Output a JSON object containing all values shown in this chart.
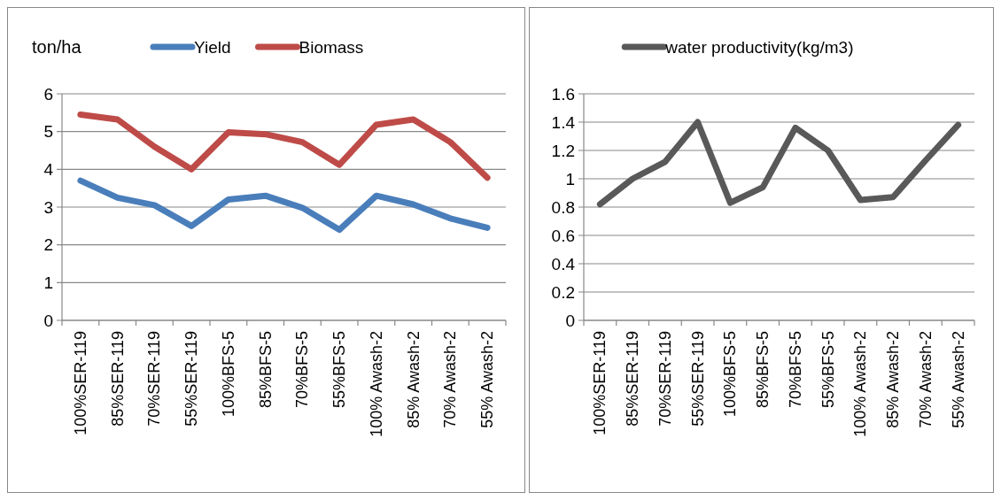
{
  "chart_data": [
    {
      "type": "line",
      "ylabel": "ton/ha",
      "categories": [
        "100%SER-119",
        "85%SER-119",
        "70%SER-119",
        "55%SER-119",
        "100%BFS-5",
        "85%BFS-5",
        "70%BFS-5",
        "55%BFS-5",
        "100% Awash-2",
        "85% Awash-2",
        "70% Awash-2",
        "55% Awash-2"
      ],
      "series": [
        {
          "name": "Yield",
          "color": "#4a7ebb",
          "values": [
            3.7,
            3.25,
            3.05,
            2.5,
            3.2,
            3.3,
            2.98,
            2.4,
            3.3,
            3.07,
            2.7,
            2.45
          ]
        },
        {
          "name": "Biomass",
          "color": "#be4b48",
          "values": [
            5.45,
            5.32,
            4.6,
            4.0,
            4.98,
            4.93,
            4.72,
            4.12,
            5.18,
            5.32,
            4.72,
            3.78
          ]
        }
      ],
      "ylim": [
        0,
        6
      ],
      "yticks": [
        0,
        1,
        2,
        3,
        4,
        5,
        6
      ],
      "grid": "y",
      "legend": "top",
      "marker": "none"
    },
    {
      "type": "line",
      "categories": [
        "100%SER-119",
        "85%SER-119",
        "70%SER-119",
        "55%SER-119",
        "100%BFS-5",
        "85%BFS-5",
        "70%BFS-5",
        "55%BFS-5",
        "100% Awash-2",
        "85% Awash-2",
        "70% Awash-2",
        "55% Awash-2"
      ],
      "series": [
        {
          "name": "water productivity(kg/m3)",
          "color": "#595959",
          "values": [
            0.82,
            1.0,
            1.12,
            1.4,
            0.83,
            0.94,
            1.36,
            1.2,
            0.85,
            0.87,
            1.13,
            1.38
          ]
        }
      ],
      "ylim": [
        0,
        1.6
      ],
      "yticks": [
        0,
        0.2,
        0.4,
        0.6,
        0.8,
        1,
        1.2,
        1.4,
        1.6
      ],
      "grid": "y",
      "legend": "top",
      "marker": "none"
    }
  ]
}
